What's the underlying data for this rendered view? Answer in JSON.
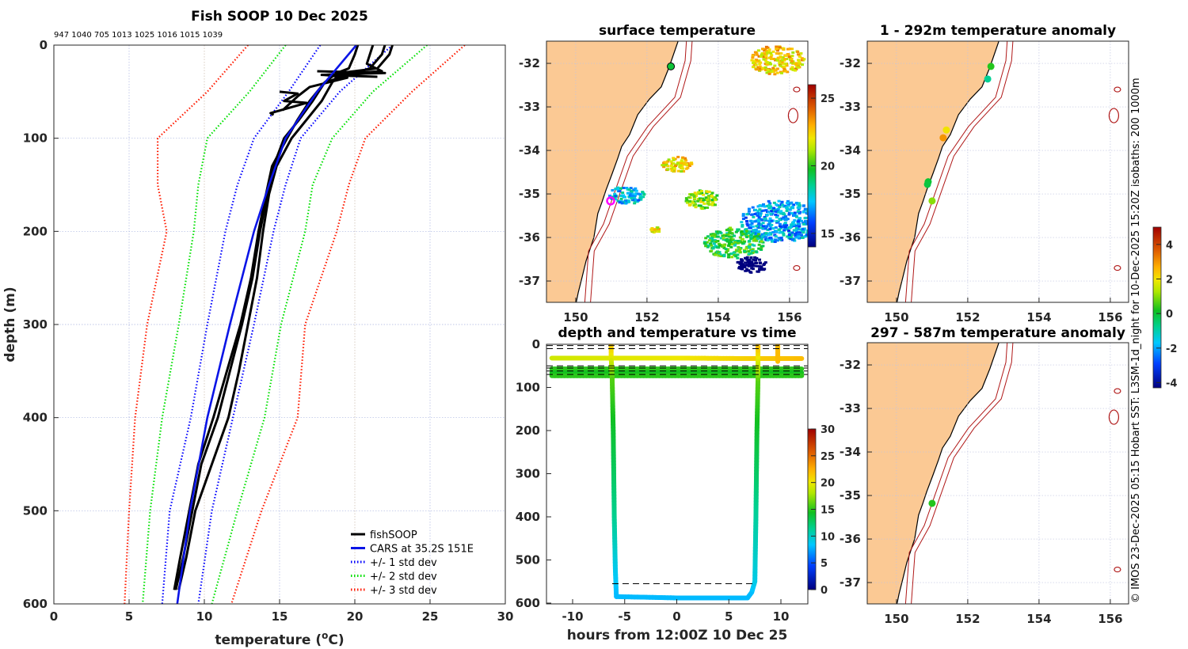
{
  "chart_data": [
    {
      "type": "line",
      "title": "Fish SOOP 10 Dec 2025",
      "profile_ids": "947 1040 705 1013 1025 1016 1015 1039",
      "xlabel": "temperature (",
      "xlabel_unit": "o",
      "xlabel_end": "C)",
      "ylabel": "depth (m)",
      "xlim": [
        0,
        30
      ],
      "ylim": [
        600,
        0
      ],
      "xticks": [
        "0",
        "5",
        "10",
        "15",
        "20",
        "25",
        "30"
      ],
      "yticks": [
        "0",
        "100",
        "200",
        "300",
        "400",
        "500",
        "600"
      ],
      "legend": [
        "fishSOOP",
        "CARS at 35.2S 151E",
        "+/- 1 std dev",
        "+/- 2 std dev",
        "+/- 3 std dev"
      ],
      "legend_position": "bottom-right",
      "colors": {
        "fishSOOP": "#000000",
        "cars": "#0a14e6",
        "sd1": "#0000ff",
        "sd2": "#00e000",
        "sd3": "#ff1a00"
      },
      "depth": [
        0,
        50,
        100,
        150,
        200,
        300,
        400,
        500,
        600
      ],
      "cars_mean": [
        20.1,
        17.5,
        15.4,
        14.3,
        13.3,
        11.7,
        10.2,
        9.05,
        8.2
      ],
      "sd1_low": [
        17.7,
        15.6,
        13.3,
        12.2,
        11.4,
        10.2,
        9.1,
        7.7,
        7.2
      ],
      "sd1_high": [
        22.5,
        19.0,
        16.4,
        15.4,
        14.6,
        13.3,
        11.9,
        10.5,
        9.6
      ],
      "sd2_low": [
        15.4,
        13.0,
        10.2,
        9.6,
        9.3,
        8.3,
        7.2,
        6.4,
        5.9
      ],
      "sd2_high": [
        24.8,
        21.2,
        18.5,
        17.2,
        16.7,
        15.1,
        14.0,
        12.2,
        10.5
      ],
      "sd3_low": [
        12.9,
        10.2,
        6.9,
        6.9,
        7.5,
        6.2,
        5.4,
        5.0,
        4.7
      ],
      "sd3_high": [
        27.3,
        23.8,
        20.7,
        19.6,
        18.8,
        16.7,
        16.2,
        13.8,
        11.8
      ],
      "profiles": [
        {
          "depth": [
            0,
            10,
            25,
            30,
            40,
            60,
            80,
            100,
            130,
            160,
            200,
            250,
            300,
            350,
            400,
            450,
            500,
            550,
            585
          ],
          "temp": [
            22.5,
            22.3,
            21.5,
            19,
            18.5,
            17.8,
            16.8,
            15.8,
            14.8,
            14.3,
            13.9,
            13.5,
            12.9,
            12.3,
            11.6,
            10.5,
            9.4,
            8.8,
            8.3
          ]
        },
        {
          "depth": [
            0,
            10,
            25,
            30,
            40,
            60,
            80,
            100,
            130,
            160,
            200,
            250,
            300,
            350,
            400,
            450,
            500,
            550,
            585
          ],
          "temp": [
            22,
            21.8,
            21,
            20,
            18,
            17.2,
            16.3,
            15.3,
            14.6,
            14.2,
            13.7,
            13.2,
            12.5,
            11.7,
            10.9,
            9.8,
            9.2,
            8.6,
            8.1
          ]
        },
        {
          "depth": [
            0,
            10,
            25,
            30,
            40,
            60,
            80,
            100,
            130,
            160,
            200,
            250,
            300,
            350,
            400,
            450,
            500,
            550,
            585
          ],
          "temp": [
            20.2,
            20,
            19.6,
            18.8,
            18,
            17,
            16.2,
            15.5,
            14.5,
            14.1,
            13.6,
            13.1,
            12.4,
            11.5,
            10.6,
            9.6,
            9.0,
            8.4,
            8.0
          ]
        },
        {
          "depth": [
            0,
            20,
            28,
            32,
            35,
            45,
            55,
            70
          ],
          "temp": [
            21.2,
            20.8,
            21.8,
            18,
            19.5,
            17,
            16.2,
            15.2
          ]
        },
        {
          "depth": [
            28,
            30,
            32,
            34
          ],
          "temp": [
            17.5,
            22,
            17.8,
            21.5
          ]
        },
        {
          "depth": [
            50,
            52,
            60,
            62,
            73,
            75
          ],
          "temp": [
            15.0,
            16.2,
            15.3,
            16.8,
            14.4,
            14.6
          ]
        }
      ]
    },
    {
      "type": "heatmap",
      "title": "surface temperature",
      "xticks": [
        "150",
        "152",
        "154",
        "156"
      ],
      "yticks": [
        "-32",
        "-33",
        "-34",
        "-35",
        "-36",
        "-37"
      ],
      "colorbar_ticks": [
        "25",
        "20",
        "15"
      ],
      "colorbar_range": [
        14,
        26
      ],
      "sst_patches": [
        {
          "lon": 155.6,
          "lat": -31.9,
          "temp": 22.5,
          "spread": 0.55
        },
        {
          "lon": 152.8,
          "lat": -34.3,
          "temp": 22.2,
          "spread": 0.3
        },
        {
          "lon": 151.4,
          "lat": -35.0,
          "temp": 17.5,
          "spread": 0.35
        },
        {
          "lon": 155.7,
          "lat": -35.6,
          "temp": 17,
          "spread": 0.8
        },
        {
          "lon": 154.4,
          "lat": -36.1,
          "temp": 19.5,
          "spread": 0.6
        },
        {
          "lon": 153.5,
          "lat": -35.1,
          "temp": 21,
          "spread": 0.35
        },
        {
          "lon": 152.2,
          "lat": -35.8,
          "temp": 22,
          "spread": 0.1
        },
        {
          "lon": 154.9,
          "lat": -36.6,
          "temp": 12,
          "spread": 0.3
        }
      ],
      "points": [
        {
          "lon": 152.67,
          "lat": -32.07,
          "temp": 19.5
        }
      ],
      "vessel_position": {
        "lon": 150.98,
        "lat": -35.16
      }
    },
    {
      "type": "scatter",
      "title": "1 - 292m temperature anomaly",
      "xticks": [
        "150",
        "152",
        "154",
        "156"
      ],
      "yticks": [
        "-32",
        "-33",
        "-34",
        "-35",
        "-36",
        "-37"
      ],
      "points": [
        {
          "lon": 152.65,
          "lat": -32.07,
          "anomaly": 0.3
        },
        {
          "lon": 152.56,
          "lat": -32.36,
          "anomaly": -0.8
        },
        {
          "lon": 151.4,
          "lat": -33.53,
          "anomaly": 2.0
        },
        {
          "lon": 151.31,
          "lat": -33.71,
          "anomaly": 3.0
        },
        {
          "lon": 150.89,
          "lat": -34.72,
          "anomaly": 0.0
        },
        {
          "lon": 150.87,
          "lat": -34.78,
          "anomaly": -0.1
        },
        {
          "lon": 151.0,
          "lat": -35.16,
          "anomaly": 1.0
        }
      ]
    },
    {
      "type": "scatter",
      "title": "297 - 587m temperature anomaly",
      "xticks": [
        "150",
        "152",
        "154",
        "156"
      ],
      "yticks": [
        "-32",
        "-33",
        "-34",
        "-35",
        "-36",
        "-37"
      ],
      "points": [
        {
          "lon": 151.0,
          "lat": -35.18,
          "anomaly": 0.3
        }
      ],
      "colorbar_ticks": [
        "4",
        "2",
        "0",
        "-2",
        "-4"
      ],
      "colorbar_range": [
        -4.3,
        5
      ]
    },
    {
      "type": "line",
      "title": "depth and temperature vs time",
      "xlabel": "hours from 12:00Z 10 Dec 25",
      "xlim": [
        -12.5,
        12.6
      ],
      "ylim": [
        600,
        0
      ],
      "xticks": [
        "-10",
        "-5",
        "0",
        "5",
        "10"
      ],
      "yticks": [
        "0",
        "100",
        "200",
        "300",
        "400",
        "500",
        "600"
      ],
      "colorbar_ticks": [
        "30",
        "25",
        "20",
        "15",
        "10",
        "5",
        "0"
      ],
      "colorbar_range": [
        0,
        30
      ],
      "tracks": [
        [
          [
            -12,
            32,
            19
          ],
          [
            0,
            32,
            20
          ],
          [
            6,
            33,
            21
          ],
          [
            12,
            33,
            22
          ]
        ],
        [
          [
            -12,
            57,
            15
          ],
          [
            12,
            57,
            15
          ]
        ],
        [
          [
            -12,
            66,
            14.5
          ],
          [
            12,
            66,
            14.5
          ]
        ],
        [
          [
            -12,
            73,
            15
          ],
          [
            12,
            73,
            15
          ]
        ],
        [
          [
            -6.3,
            0,
            22
          ],
          [
            -6.3,
            30,
            20
          ],
          [
            -6.2,
            80,
            16
          ],
          [
            -6.1,
            200,
            14
          ],
          [
            -6.0,
            400,
            11.5
          ],
          [
            -5.9,
            520,
            9
          ],
          [
            -5.8,
            585,
            8
          ],
          [
            0,
            588,
            8
          ],
          [
            6.8,
            588,
            8
          ],
          [
            7.2,
            575,
            8
          ],
          [
            7.5,
            550,
            9
          ],
          [
            7.6,
            400,
            11
          ],
          [
            7.7,
            200,
            14
          ],
          [
            7.8,
            80,
            16
          ],
          [
            7.8,
            0,
            22
          ]
        ],
        [
          [
            9.7,
            0,
            22
          ],
          [
            9.7,
            40,
            22
          ]
        ]
      ],
      "dashed_depths": [
        3,
        10,
        50,
        55,
        62,
        70
      ],
      "bottom_dashed": {
        "depth": 555,
        "from": -6.2,
        "to": 7.5
      }
    }
  ],
  "credit": "© IMOS 23-Dec-2025 05:15 Hobart SST: L3SM-1d_night for 10-Dec-2025 15:20Z isobaths: 200  1000m"
}
